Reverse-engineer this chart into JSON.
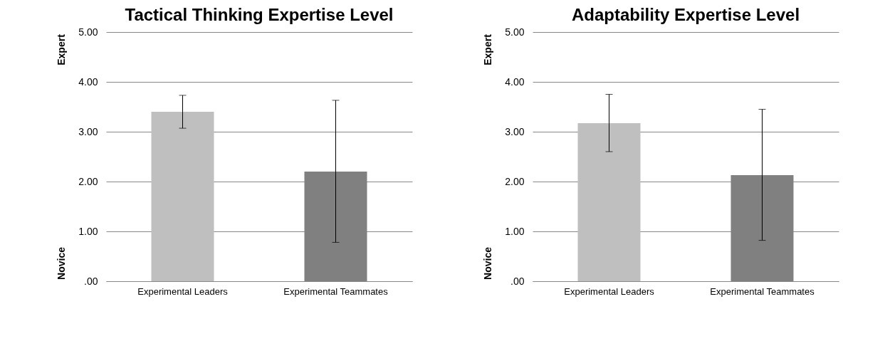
{
  "chart_data": [
    {
      "type": "bar",
      "title": "Tactical Thinking Expertise Level",
      "categories": [
        "Experimental Leaders",
        "Experimental Teammates"
      ],
      "values": [
        3.4,
        2.2
      ],
      "colors": [
        "#bfbfbf",
        "#808080"
      ],
      "errors": [
        [
          3.07,
          3.73
        ],
        [
          0.78,
          3.63
        ]
      ],
      "ylim": [
        0,
        5
      ],
      "yticks": [
        {
          "value": 0,
          "label": ".00"
        },
        {
          "value": 1,
          "label": "1.00"
        },
        {
          "value": 2,
          "label": "2.00"
        },
        {
          "value": 3,
          "label": "3.00"
        },
        {
          "value": 4,
          "label": "4.00"
        },
        {
          "value": 5,
          "label": "5.00"
        }
      ],
      "grid": "y",
      "annotations": [
        "Expert",
        "Novice"
      ]
    },
    {
      "type": "bar",
      "title": "Adaptability Expertise Level",
      "categories": [
        "Experimental Leaders",
        "Experimental Teammates"
      ],
      "values": [
        3.17,
        2.13
      ],
      "colors": [
        "#bfbfbf",
        "#808080"
      ],
      "errors": [
        [
          2.6,
          3.75
        ],
        [
          0.82,
          3.45
        ]
      ],
      "ylim": [
        0,
        5
      ],
      "yticks": [
        {
          "value": 0,
          "label": ".00"
        },
        {
          "value": 1,
          "label": "1.00"
        },
        {
          "value": 2,
          "label": "2.00"
        },
        {
          "value": 3,
          "label": "3.00"
        },
        {
          "value": 4,
          "label": "4.00"
        },
        {
          "value": 5,
          "label": "5.00"
        }
      ],
      "grid": "y",
      "annotations": [
        "Expert",
        "Novice"
      ]
    }
  ]
}
